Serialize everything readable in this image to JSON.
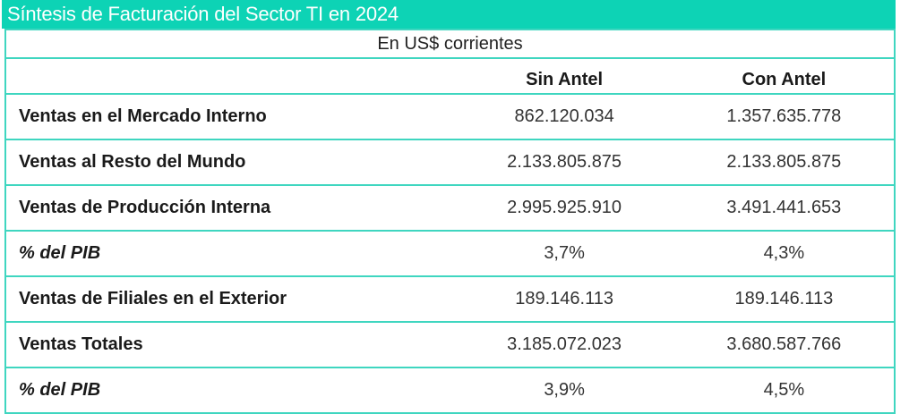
{
  "title": "Síntesis de Facturación del Sector TI en 2024",
  "subtitle": "En US$ corrientes",
  "columns": [
    "",
    "Sin Antel",
    "Con Antel"
  ],
  "rows": [
    {
      "label": "Ventas en el Mercado Interno",
      "sin": "862.120.034",
      "con": "1.357.635.778"
    },
    {
      "label": "Ventas al Resto del Mundo",
      "sin": "2.133.805.875",
      "con": "2.133.805.875"
    },
    {
      "label": "Ventas de Producción Interna",
      "sin": "2.995.925.910",
      "con": "3.491.441.653"
    },
    {
      "label": "% del PIB",
      "sin": "3,7%",
      "con": "4,3%"
    },
    {
      "label": "Ventas de Filiales en el Exterior",
      "sin": "189.146.113",
      "con": "189.146.113"
    },
    {
      "label": "Ventas Totales",
      "sin": "3.185.072.023",
      "con": "3.680.587.766"
    },
    {
      "label": "% del PIB",
      "sin": "3,9%",
      "con": "4,5%"
    }
  ],
  "colors": {
    "accent": "#0dd3b5"
  }
}
